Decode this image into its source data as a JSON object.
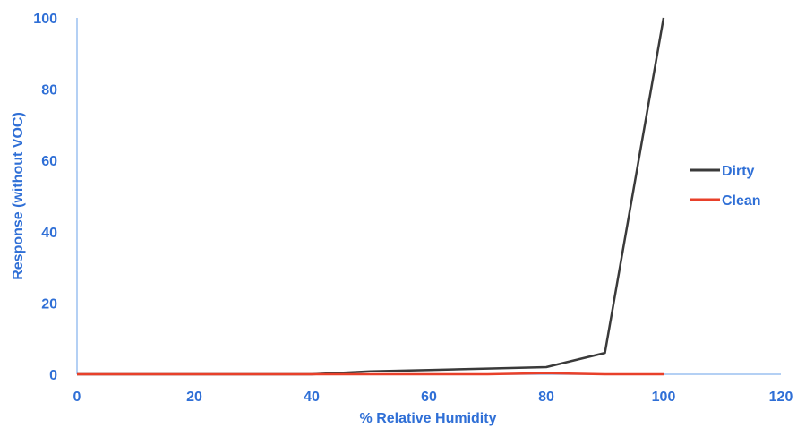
{
  "chart_data": {
    "type": "line",
    "title": "",
    "xlabel": "% Relative Humidity",
    "ylabel": "Response (without VOC)",
    "xlim": [
      0,
      120
    ],
    "ylim": [
      0,
      100
    ],
    "xticks": [
      0,
      20,
      40,
      60,
      80,
      100,
      120
    ],
    "yticks": [
      0,
      20,
      40,
      60,
      80,
      100
    ],
    "grid": false,
    "legend_position": "right",
    "axis_color": "#2f6fd6",
    "series": [
      {
        "name": "Dirty",
        "color": "#3a3a3a",
        "x": [
          0,
          10,
          20,
          30,
          40,
          50,
          60,
          70,
          80,
          90,
          100
        ],
        "y": [
          0,
          0,
          0,
          0,
          0,
          0.8,
          1.2,
          1.6,
          2,
          6,
          100
        ]
      },
      {
        "name": "Clean",
        "color": "#e8402a",
        "x": [
          0,
          10,
          20,
          30,
          40,
          50,
          60,
          70,
          80,
          90,
          100
        ],
        "y": [
          0,
          0,
          0,
          0,
          0,
          0,
          0,
          0,
          0.3,
          0,
          0
        ]
      }
    ]
  }
}
